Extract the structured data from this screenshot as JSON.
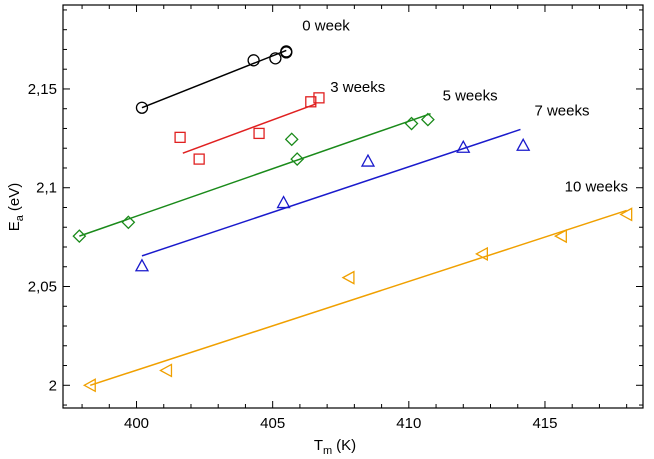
{
  "chart_data": {
    "type": "scatter",
    "xlabel": "T",
    "xlabel_sub": "m",
    "xlabel_unit": "(K)",
    "ylabel": "E",
    "ylabel_sub": "a",
    "ylabel_unit": "(eV)",
    "xlim": [
      397.3,
      418.6
    ],
    "ylim": [
      1.9885,
      2.1925
    ],
    "xticks": [
      400,
      405,
      410,
      415
    ],
    "xtick_labels": [
      "400",
      "405",
      "410",
      "415"
    ],
    "yticks": [
      2.0,
      2.05,
      2.1,
      2.15
    ],
    "ytick_labels": [
      "2",
      "2,05",
      "2,1",
      "2,15"
    ],
    "grid": false,
    "series": [
      {
        "name": "0 week",
        "label": "0 week",
        "marker": "circle",
        "color": "#000000",
        "x": [
          400.2,
          404.3,
          405.1,
          405.5,
          405.5
        ],
        "y": [
          2.1405,
          2.1645,
          2.1655,
          2.1685,
          2.169
        ],
        "fit": [
          [
            400.2,
            2.1405
          ],
          [
            405.5,
            2.1695
          ]
        ]
      },
      {
        "name": "3 weeks",
        "label": "3 weeks",
        "marker": "square",
        "color": "#e02020",
        "x": [
          401.6,
          402.3,
          404.5,
          406.4,
          406.7
        ],
        "y": [
          2.1255,
          2.1145,
          2.1275,
          2.1435,
          2.1455
        ],
        "fit": [
          [
            401.7,
            2.1175
          ],
          [
            406.6,
            2.1425
          ]
        ]
      },
      {
        "name": "5 weeks",
        "label": "5 weeks",
        "marker": "diamond",
        "color": "#1a8a1a",
        "x": [
          397.9,
          399.7,
          405.7,
          405.9,
          410.1,
          410.7
        ],
        "y": [
          2.0755,
          2.0825,
          2.1245,
          2.1145,
          2.1325,
          2.1345
        ],
        "fit": [
          [
            397.9,
            2.0755
          ],
          [
            410.8,
            2.1375
          ]
        ]
      },
      {
        "name": "7 weeks",
        "label": "7 weeks",
        "marker": "triangle-up",
        "color": "#1a1acc",
        "x": [
          400.2,
          405.4,
          408.5,
          412.0,
          414.2
        ],
        "y": [
          2.0605,
          2.0925,
          2.1135,
          2.1205,
          2.1215
        ],
        "fit": [
          [
            400.2,
            2.0655
          ],
          [
            414.1,
            2.1295
          ]
        ]
      },
      {
        "name": "10 weeks",
        "label": "10 weeks",
        "marker": "triangle-left",
        "color": "#f0a000",
        "x": [
          398.3,
          401.1,
          407.8,
          412.7,
          415.6,
          418.0
        ],
        "y": [
          2.0,
          2.0075,
          2.0545,
          2.0665,
          2.0755,
          2.0865
        ],
        "fit": [
          [
            398.3,
            2.0
          ],
          [
            418.0,
            2.0885
          ]
        ]
      }
    ]
  }
}
